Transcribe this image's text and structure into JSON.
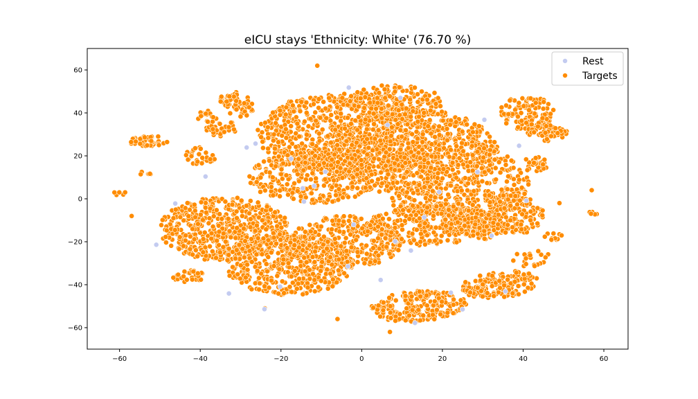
{
  "chart_data": {
    "type": "scatter",
    "title": "eICU stays 'Ethnicity: White' (76.70 %)",
    "xlabel": "",
    "ylabel": "",
    "xlim": [
      -68,
      66
    ],
    "ylim": [
      -70,
      70
    ],
    "xticks": [
      -60,
      -40,
      -20,
      0,
      20,
      40,
      60
    ],
    "yticks": [
      -60,
      -40,
      -20,
      0,
      20,
      40,
      60
    ],
    "xtick_labels": [
      "−60",
      "−40",
      "−20",
      "0",
      "20",
      "40",
      "60"
    ],
    "ytick_labels": [
      "−60",
      "−40",
      "−20",
      "0",
      "20",
      "40",
      "60"
    ],
    "grid": false,
    "legend_position": "top-right",
    "series": [
      {
        "name": "Rest",
        "color": "#c3cbf0",
        "points": [
          [
            -50.9,
            -21.4
          ],
          [
            -28.5,
            23.9
          ],
          [
            -26.3,
            25.7
          ],
          [
            -38.7,
            10.4
          ],
          [
            -32.9,
            -44.1
          ],
          [
            -11.8,
            6.0
          ],
          [
            -14.6,
            4.9
          ],
          [
            -24.1,
            -51.4
          ],
          [
            -14.3,
            -1.3
          ],
          [
            12.2,
            -24.1
          ],
          [
            13.2,
            -57.8
          ],
          [
            25.0,
            -51.5
          ],
          [
            39.0,
            24.7
          ],
          [
            40.8,
            -0.8
          ],
          [
            32.2,
            -17.2
          ],
          [
            6.4,
            34.4
          ],
          [
            -17.5,
            18.6
          ],
          [
            -3.4,
            -31.5
          ],
          [
            8.3,
            -19.8
          ],
          [
            19.2,
            3.2
          ],
          [
            30.4,
            36.8
          ],
          [
            -46.2,
            -2.2
          ],
          [
            -9.0,
            12.6
          ],
          [
            15.5,
            -8.6
          ],
          [
            22.1,
            -43.7
          ],
          [
            -3.2,
            51.8
          ],
          [
            4.7,
            -37.8
          ],
          [
            28.7,
            12.5
          ],
          [
            -20.2,
            -40.9
          ],
          [
            9.6,
            47.0
          ],
          [
            35.6,
            -43.1
          ],
          [
            -2.0,
            -12.0
          ]
        ]
      },
      {
        "name": "Targets",
        "color": "#ff8c00",
        "points": []
      }
    ]
  }
}
